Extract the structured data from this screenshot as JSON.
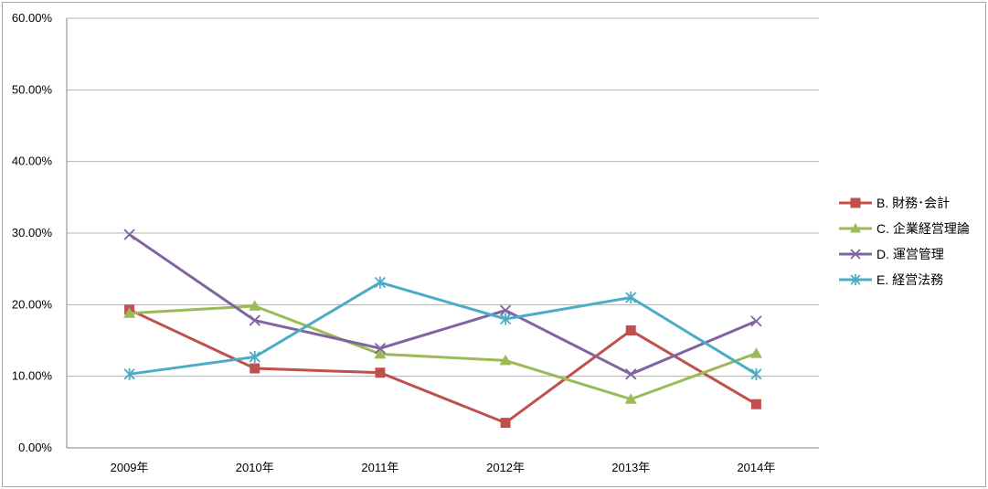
{
  "chart": {
    "background": "#ffffff",
    "frame_border_color": "#a6a6a6",
    "axis_color": "#808080",
    "gridline_color": "#b3b3b3",
    "tick_label_color": "#000000",
    "legend_border": "none"
  },
  "chart_data": {
    "type": "line",
    "title": "",
    "xlabel": "",
    "ylabel": "",
    "categories": [
      "2009年",
      "2010年",
      "2011年",
      "2012年",
      "2013年",
      "2014年"
    ],
    "series": [
      {
        "name": "B. 財務･会計",
        "color": "#c0504d",
        "marker": "square",
        "values": [
          19.3,
          11.1,
          10.5,
          3.5,
          16.4,
          6.1
        ]
      },
      {
        "name": "C. 企業経営理論",
        "color": "#9bbb59",
        "marker": "triangle",
        "values": [
          18.8,
          19.8,
          13.1,
          12.2,
          6.8,
          13.2
        ]
      },
      {
        "name": "D. 運営管理",
        "color": "#8064a2",
        "marker": "x",
        "values": [
          29.8,
          17.8,
          13.9,
          19.2,
          10.3,
          17.7
        ]
      },
      {
        "name": "E. 経営法務",
        "color": "#4bacc6",
        "marker": "asterisk",
        "values": [
          10.3,
          12.7,
          23.1,
          18.0,
          21.0,
          10.3
        ]
      }
    ],
    "ylim": [
      0,
      60
    ],
    "ytick_step": 10,
    "y_tick_labels": [
      "0.00%",
      "10.00%",
      "20.00%",
      "30.00%",
      "40.00%",
      "50.00%",
      "60.00%"
    ],
    "grid": true,
    "legend_position": "right"
  }
}
